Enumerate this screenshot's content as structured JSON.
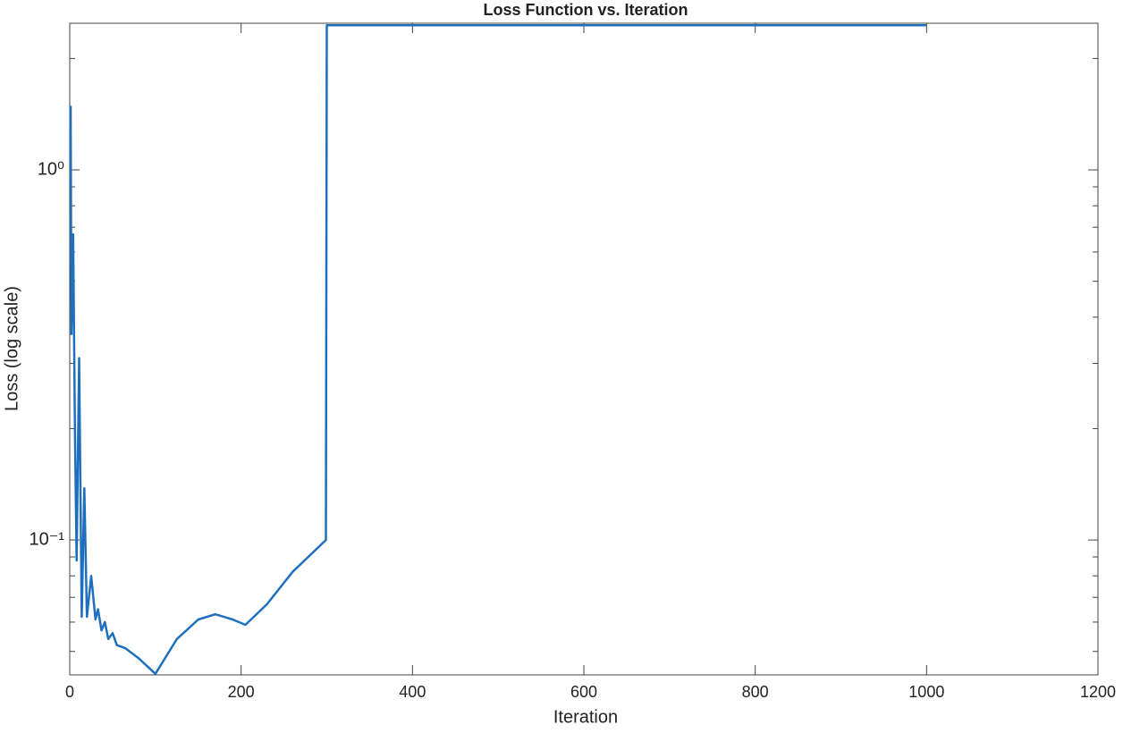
{
  "chart_data": {
    "type": "line",
    "title": "Loss Function vs. Iteration",
    "xlabel": "Iteration",
    "ylabel": "Loss (log scale)",
    "x": [
      1,
      2,
      4,
      6,
      8,
      11,
      14,
      17,
      20,
      25,
      30,
      33,
      37,
      41,
      45,
      50,
      55,
      65,
      80,
      100,
      125,
      150,
      170,
      190,
      205,
      230,
      260,
      299,
      300,
      1000
    ],
    "values": [
      1.49,
      0.36,
      0.67,
      0.2,
      0.088,
      0.31,
      0.062,
      0.138,
      0.062,
      0.08,
      0.061,
      0.065,
      0.057,
      0.06,
      0.054,
      0.056,
      0.052,
      0.051,
      0.048,
      0.0435,
      0.054,
      0.061,
      0.063,
      0.061,
      0.059,
      0.067,
      0.082,
      0.1,
      2.46,
      2.46
    ],
    "color": "#1f6fbf",
    "xlim": [
      0,
      1200
    ],
    "xticks": [
      0,
      200,
      400,
      600,
      800,
      1000,
      1200
    ],
    "ylim": [
      0.0432,
      2.49
    ],
    "yscale": "log",
    "yticks": [
      {
        "value": 0.1,
        "label": "10⁻¹"
      },
      {
        "value": 1,
        "label": "10⁰"
      }
    ],
    "yminorticks": [
      0.05,
      0.06,
      0.07,
      0.08,
      0.09,
      0.2,
      0.3,
      0.4,
      0.5,
      0.6,
      0.7,
      0.8,
      0.9,
      2
    ],
    "grid": false
  }
}
